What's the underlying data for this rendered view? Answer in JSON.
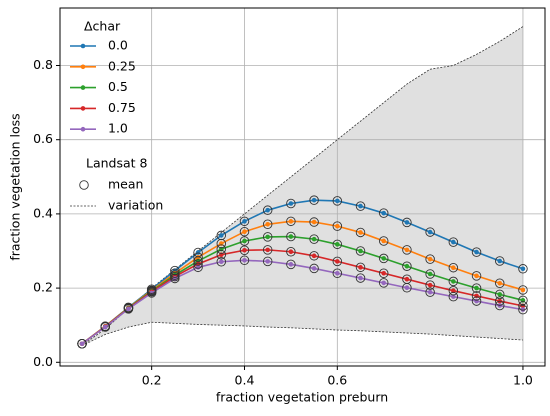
{
  "chart_data": {
    "type": "line",
    "xlabel": "fraction vegetation preburn",
    "ylabel": "fraction vegetation loss",
    "x": [
      0.05,
      0.1,
      0.15,
      0.2,
      0.25,
      0.3,
      0.35,
      0.4,
      0.45,
      0.5,
      0.55,
      0.6,
      0.65,
      0.7,
      0.75,
      0.8,
      0.85,
      0.9,
      0.95,
      1.0
    ],
    "legend_title": "Δchar",
    "series": [
      {
        "name": "0.0",
        "color": "#1f77b4",
        "values": [
          0.05,
          0.097,
          0.148,
          0.197,
          0.247,
          0.296,
          0.342,
          0.38,
          0.41,
          0.428,
          0.437,
          0.435,
          0.421,
          0.402,
          0.377,
          0.351,
          0.324,
          0.297,
          0.273,
          0.252
        ]
      },
      {
        "name": "0.25",
        "color": "#ff7f0e",
        "values": [
          0.05,
          0.097,
          0.147,
          0.194,
          0.24,
          0.283,
          0.32,
          0.352,
          0.372,
          0.38,
          0.378,
          0.367,
          0.35,
          0.327,
          0.303,
          0.278,
          0.255,
          0.233,
          0.213,
          0.195
        ]
      },
      {
        "name": "0.5",
        "color": "#2ca02c",
        "values": [
          0.05,
          0.096,
          0.146,
          0.192,
          0.235,
          0.273,
          0.305,
          0.327,
          0.338,
          0.339,
          0.332,
          0.318,
          0.3,
          0.28,
          0.259,
          0.238,
          0.218,
          0.2,
          0.183,
          0.167
        ]
      },
      {
        "name": "0.75",
        "color": "#d62728",
        "values": [
          0.05,
          0.096,
          0.145,
          0.19,
          0.231,
          0.265,
          0.29,
          0.302,
          0.303,
          0.298,
          0.287,
          0.272,
          0.256,
          0.24,
          0.224,
          0.208,
          0.193,
          0.179,
          0.165,
          0.152
        ]
      },
      {
        "name": "1.0",
        "color": "#9467bd",
        "values": [
          0.05,
          0.095,
          0.144,
          0.187,
          0.226,
          0.256,
          0.271,
          0.275,
          0.272,
          0.264,
          0.253,
          0.24,
          0.227,
          0.214,
          0.201,
          0.189,
          0.177,
          0.165,
          0.153,
          0.142
        ]
      }
    ],
    "landsat_title": "Landsat 8",
    "mean_label": "mean",
    "variation_label": "variation",
    "variation_upper": [
      0.045,
      0.09,
      0.145,
      0.2,
      0.25,
      0.3,
      0.35,
      0.4,
      0.45,
      0.5,
      0.55,
      0.6,
      0.65,
      0.7,
      0.75,
      0.79,
      0.8,
      0.83,
      0.865,
      0.905
    ],
    "variation_lower": [
      0.045,
      0.075,
      0.095,
      0.108,
      0.105,
      0.102,
      0.1,
      0.098,
      0.095,
      0.093,
      0.09,
      0.087,
      0.085,
      0.082,
      0.079,
      0.076,
      0.072,
      0.068,
      0.064,
      0.06
    ],
    "variation_color": "#e0e0e0",
    "xlim": [
      0.0025,
      1.0475
    ],
    "ylim": [
      -0.01,
      0.955
    ],
    "xticks": [
      0.2,
      0.4,
      0.6,
      {
        "value": 1,
        "label": "1.0"
      }
    ],
    "yticks": [
      {
        "value": 0,
        "label": "0.0"
      },
      0.2,
      0.4,
      0.6,
      0.8
    ],
    "grid": true
  }
}
